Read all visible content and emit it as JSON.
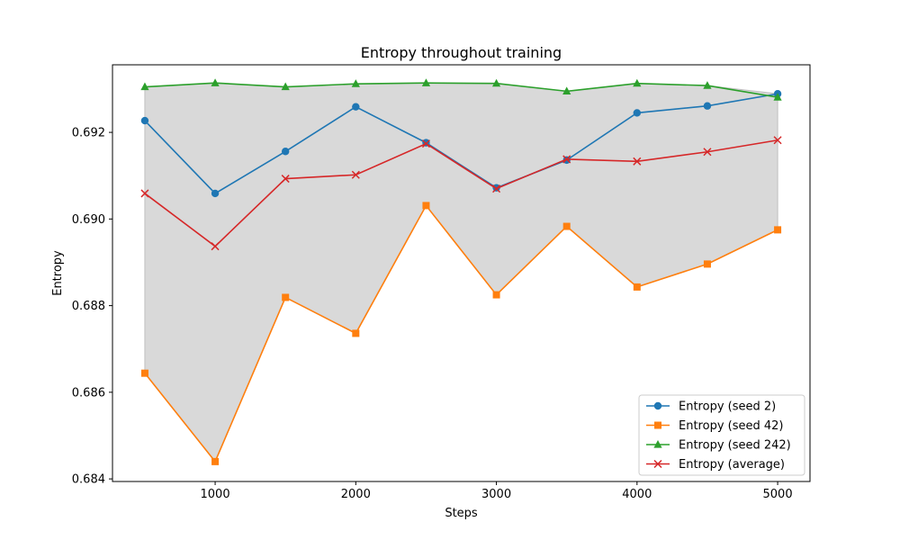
{
  "chart_data": {
    "type": "line",
    "title": "Entropy throughout training",
    "xlabel": "Steps",
    "ylabel": "Entropy",
    "x": [
      500,
      1000,
      1500,
      2000,
      2500,
      3000,
      3500,
      4000,
      4500,
      5000
    ],
    "xlim": [
      270,
      5230
    ],
    "ylim": [
      0.68394,
      0.69356
    ],
    "xticks": [
      1000,
      2000,
      3000,
      4000,
      5000
    ],
    "yticks": [
      0.684,
      0.686,
      0.688,
      0.69,
      0.692
    ],
    "ytick_labels": [
      "0.684",
      "0.686",
      "0.688",
      "0.690",
      "0.692"
    ],
    "grid": false,
    "legend_position": "lower-right",
    "shaded_band": {
      "between": [
        "min",
        "max"
      ],
      "color": "#d9d9d9"
    },
    "series": [
      {
        "name": "Entropy (seed 2)",
        "color": "#1f77b4",
        "marker": "circle",
        "values": [
          0.69227,
          0.69059,
          0.69156,
          0.69259,
          0.69176,
          0.69072,
          0.69136,
          0.69245,
          0.69261,
          0.69289
        ]
      },
      {
        "name": "Entropy (seed 42)",
        "color": "#ff7f0e",
        "marker": "square",
        "values": [
          0.68644,
          0.6844,
          0.68819,
          0.68736,
          0.69031,
          0.68825,
          0.68983,
          0.68843,
          0.68896,
          0.68975
        ]
      },
      {
        "name": "Entropy (seed 242)",
        "color": "#2ca02c",
        "marker": "triangle",
        "values": [
          0.69305,
          0.69314,
          0.69305,
          0.69312,
          0.69314,
          0.69313,
          0.69295,
          0.69313,
          0.69308,
          0.69281
        ]
      },
      {
        "name": "Entropy (average)",
        "color": "#d62728",
        "marker": "x",
        "values": [
          0.69059,
          0.68937,
          0.69093,
          0.69102,
          0.69174,
          0.6907,
          0.69138,
          0.69133,
          0.69155,
          0.69182
        ]
      }
    ]
  }
}
